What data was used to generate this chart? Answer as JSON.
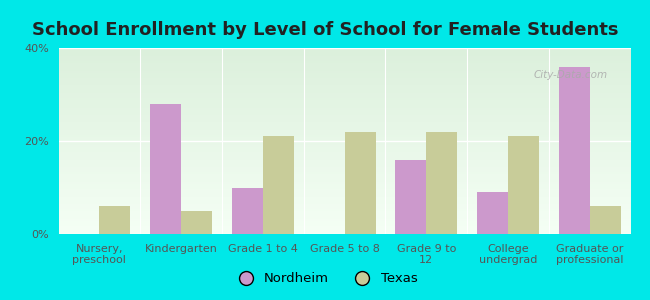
{
  "title": "School Enrollment by Level of School for Female Students",
  "categories": [
    "Nursery,\npreschool",
    "Kindergarten",
    "Grade 1 to 4",
    "Grade 5 to 8",
    "Grade 9 to\n12",
    "College\nundergrad",
    "Graduate or\nprofessional"
  ],
  "nordheim": [
    0,
    28,
    10,
    0,
    16,
    9,
    36
  ],
  "texas": [
    6,
    5,
    21,
    22,
    22,
    21,
    6
  ],
  "nordheim_color": "#cc99cc",
  "texas_color": "#c8cc99",
  "background_color": "#00e8e8",
  "plot_bg_color": "#e8f5ee",
  "ylim": [
    0,
    40
  ],
  "yticks": [
    0,
    20,
    40
  ],
  "ytick_labels": [
    "0%",
    "20%",
    "40%"
  ],
  "bar_width": 0.38,
  "legend_labels": [
    "Nordheim",
    "Texas"
  ],
  "title_fontsize": 13,
  "tick_fontsize": 8,
  "watermark": "City-Data.com"
}
